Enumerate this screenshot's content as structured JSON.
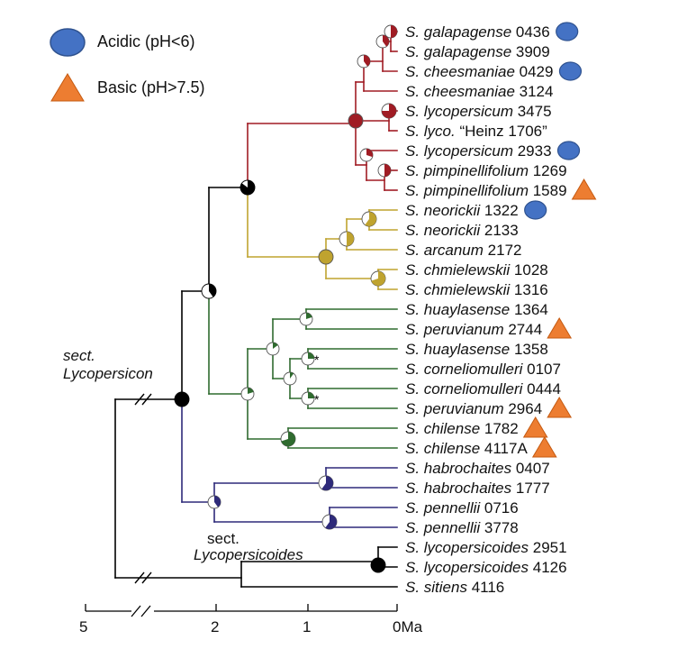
{
  "legend": [
    {
      "shape": "ellipse",
      "color": "#4472C4",
      "label": "Acidic (pH<6)"
    },
    {
      "shape": "triangle",
      "color": "#ED7D31",
      "label": "Basic (pH>7.5)"
    }
  ],
  "colors": {
    "red_clade": "#a01c24",
    "yellow_clade": "#bfa32f",
    "green_clade": "#2f6b2f",
    "blue_clade": "#2e2a7a",
    "backbone": "#000000",
    "acidic": "#4472C4",
    "basic": "#ED7D31"
  },
  "section_labels": [
    {
      "line1": "sect.",
      "line2": "Lycopersicon"
    },
    {
      "line1": "sect.",
      "line2": "Lycopersicoides"
    }
  ],
  "axis": {
    "ticks": [
      "5",
      "2",
      "1",
      "0Ma"
    ],
    "tick_values": [
      5,
      2,
      1,
      0
    ],
    "break_marks": "//"
  },
  "asterisk": "*",
  "taxa": [
    {
      "genus": "S.",
      "species": "galapagense",
      "id": "0436",
      "marker": "acidic"
    },
    {
      "genus": "S.",
      "species": "galapagense",
      "id": "3909",
      "marker": ""
    },
    {
      "genus": "S.",
      "species": "cheesmaniae",
      "id": "0429",
      "marker": "acidic"
    },
    {
      "genus": "S.",
      "species": "cheesmaniae",
      "id": "3124",
      "marker": ""
    },
    {
      "genus": "S.",
      "species": "lycopersicum",
      "id": "3475",
      "marker": ""
    },
    {
      "genus": "S.",
      "species": "lyco.",
      "id": "“Heinz 1706”",
      "marker": ""
    },
    {
      "genus": "S.",
      "species": "lycopersicum",
      "id": "2933",
      "marker": "acidic"
    },
    {
      "genus": "S.",
      "species": "pimpinellifolium",
      "id": "1269",
      "marker": ""
    },
    {
      "genus": "S.",
      "species": "pimpinellifolium",
      "id": "1589",
      "marker": "basic"
    },
    {
      "genus": "S.",
      "species": "neorickii",
      "id": "1322",
      "marker": "acidic"
    },
    {
      "genus": "S.",
      "species": "neorickii",
      "id": "2133",
      "marker": ""
    },
    {
      "genus": "S.",
      "species": "arcanum",
      "id": "2172",
      "marker": ""
    },
    {
      "genus": "S.",
      "species": "chmielewskii",
      "id": "1028",
      "marker": ""
    },
    {
      "genus": "S.",
      "species": "chmielewskii",
      "id": "1316",
      "marker": ""
    },
    {
      "genus": "S.",
      "species": "huaylasense",
      "id": "1364",
      "marker": ""
    },
    {
      "genus": "S.",
      "species": "peruvianum",
      "id": "2744",
      "marker": "basic"
    },
    {
      "genus": "S.",
      "species": "huaylasense",
      "id": "1358",
      "marker": ""
    },
    {
      "genus": "S.",
      "species": "corneliomulleri",
      "id": "0107",
      "marker": ""
    },
    {
      "genus": "S.",
      "species": "corneliomulleri",
      "id": "0444",
      "marker": ""
    },
    {
      "genus": "S.",
      "species": "peruvianum",
      "id": "2964",
      "marker": "basic"
    },
    {
      "genus": "S.",
      "species": "chilense",
      "id": "1782",
      "marker": "basic"
    },
    {
      "genus": "S.",
      "species": "chilense",
      "id": "4117A",
      "marker": "basic"
    },
    {
      "genus": "S.",
      "species": "habrochaites",
      "id": "0407",
      "marker": ""
    },
    {
      "genus": "S.",
      "species": "habrochaites",
      "id": "1777",
      "marker": ""
    },
    {
      "genus": "S.",
      "species": "pennellii",
      "id": "0716",
      "marker": ""
    },
    {
      "genus": "S.",
      "species": "pennellii",
      "id": "3778",
      "marker": ""
    },
    {
      "genus": "S.",
      "species": "lycopersicoides",
      "id": "2951",
      "marker": ""
    },
    {
      "genus": "S.",
      "species": "lycopersicoides",
      "id": "4126",
      "marker": ""
    },
    {
      "genus": "S.",
      "species": "sitiens",
      "id": "4116",
      "marker": ""
    }
  ]
}
